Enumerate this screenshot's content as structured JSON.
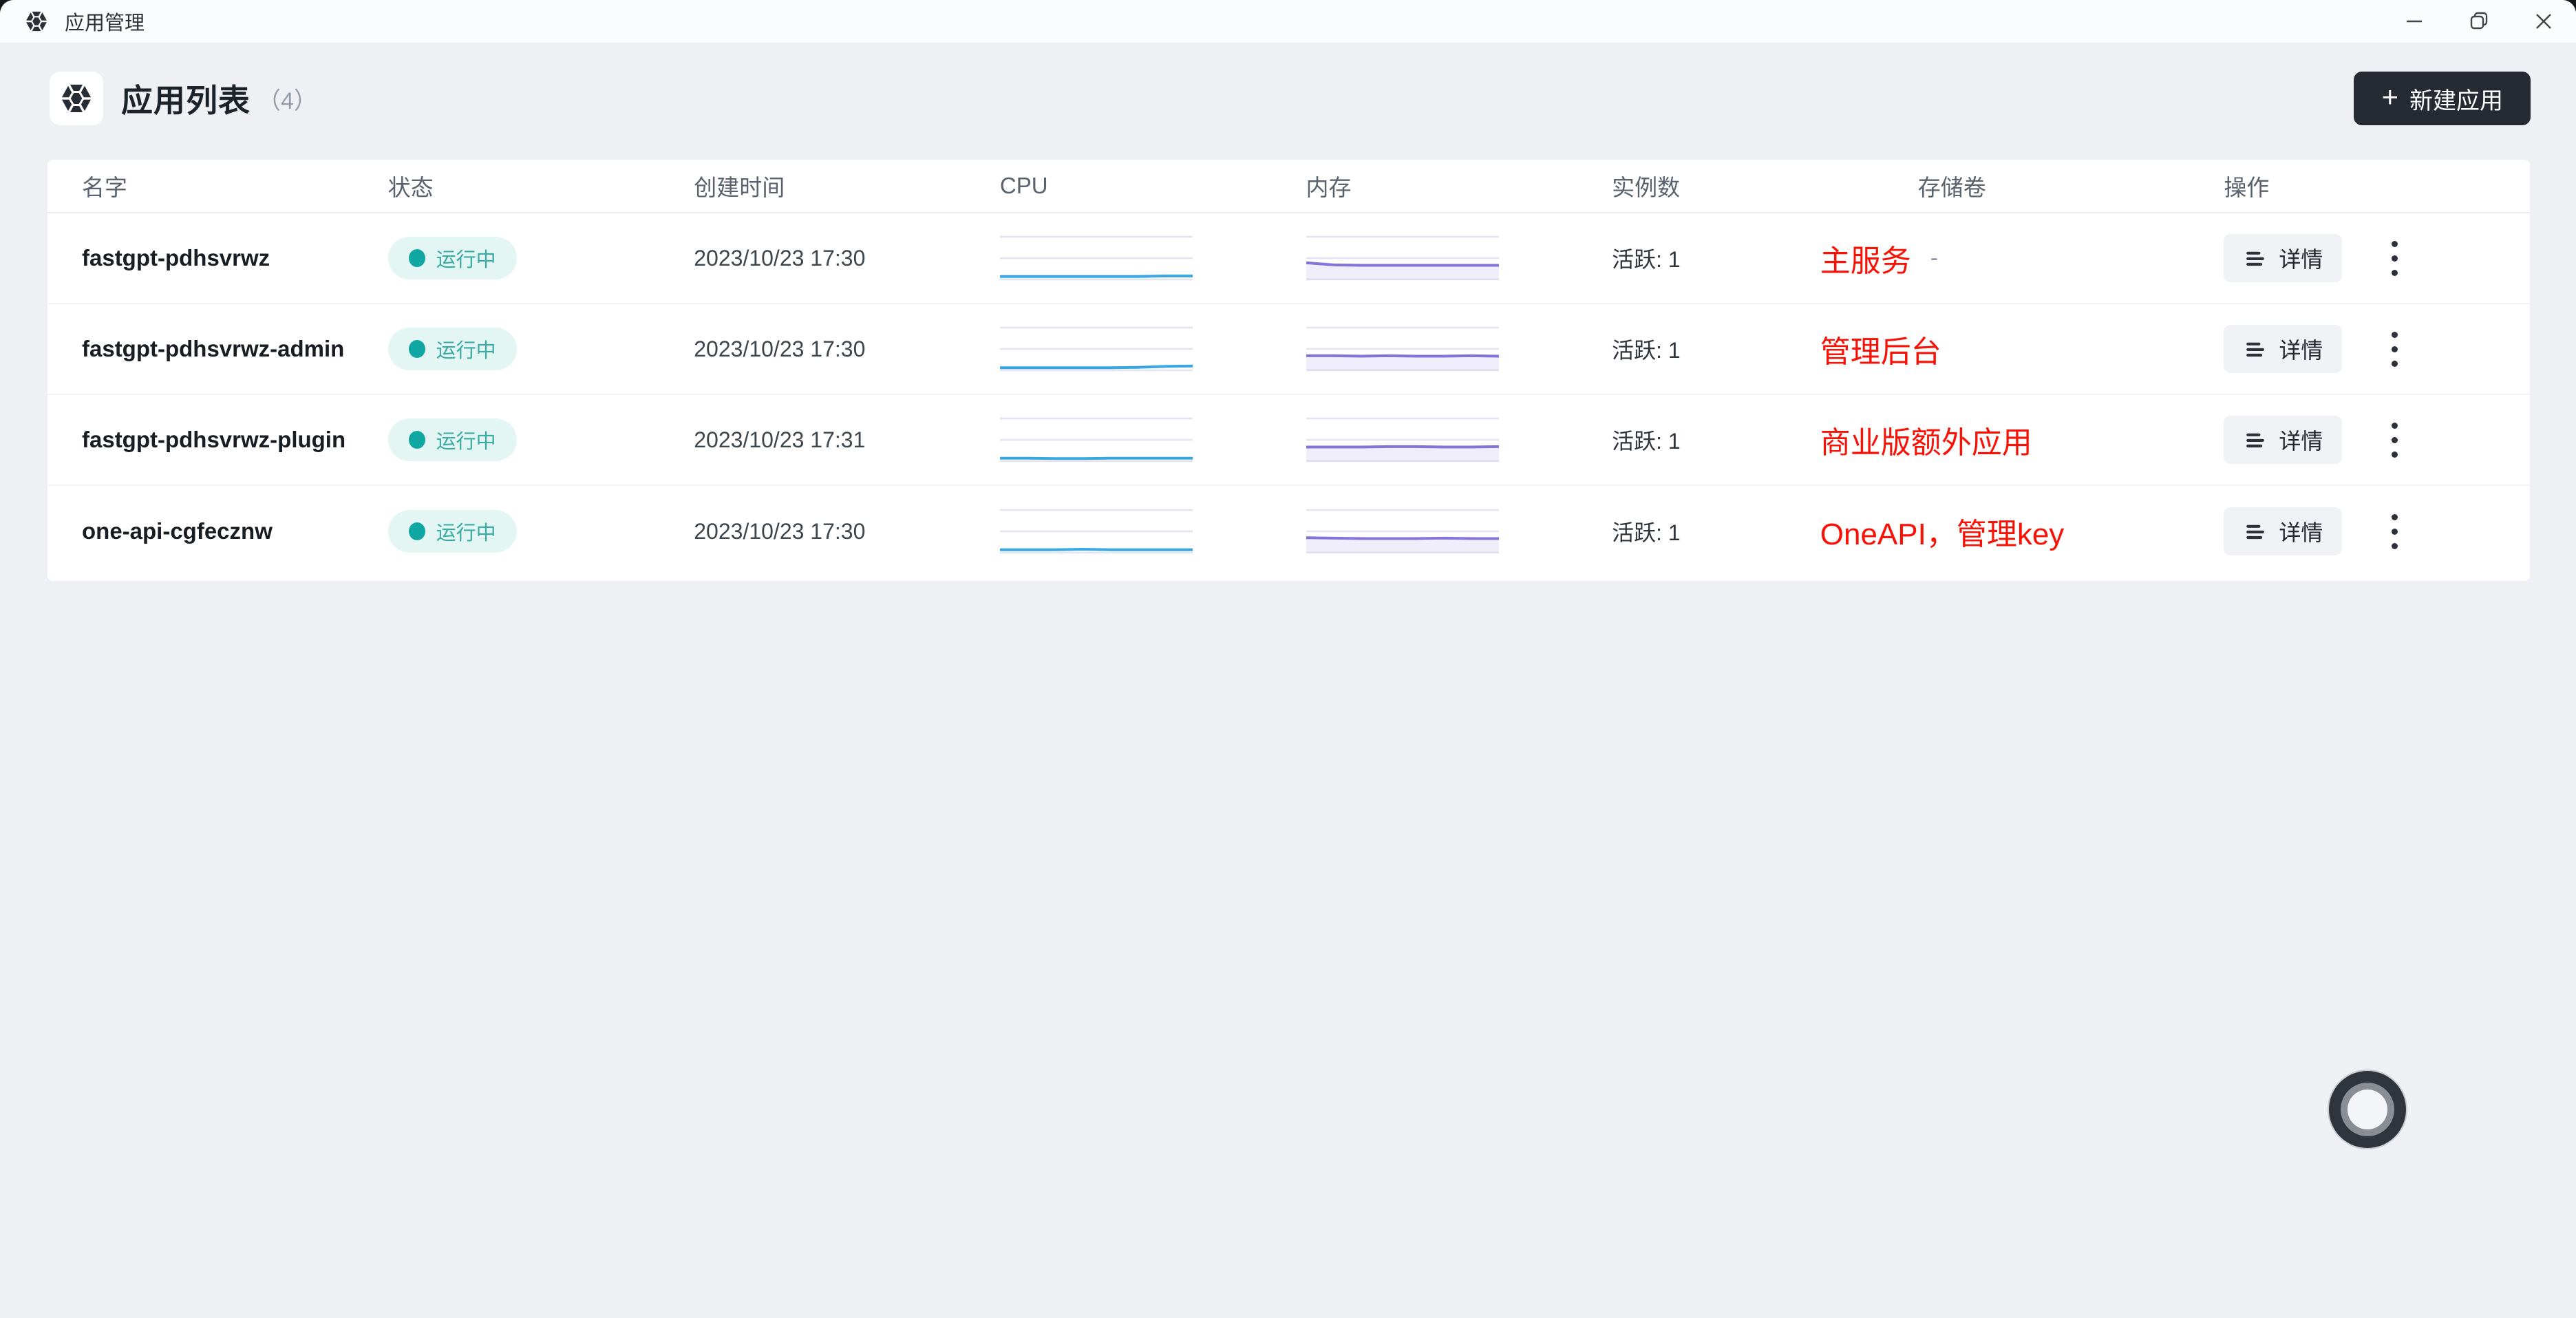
{
  "titlebar": {
    "app_title": "应用管理",
    "icons": {
      "app": "gem-hexagon",
      "minimize": "minimize",
      "restore": "restore-window",
      "close": "close"
    }
  },
  "header": {
    "title": "应用列表",
    "count": "（4）",
    "new_button": {
      "plus": "+",
      "label": "新建应用"
    }
  },
  "table": {
    "columns": [
      "名字",
      "状态",
      "创建时间",
      "CPU",
      "内存",
      "实例数",
      "存储卷",
      "操作"
    ],
    "detail_label": "详情",
    "rows": [
      {
        "name": "fastgpt-pdhsvrwz",
        "status": "运行中",
        "created": "2023/10/23 17:30",
        "instances": "活跃: 1",
        "volume": "-",
        "annotation": "主服务",
        "cpu": [
          0.07,
          0.07,
          0.07,
          0.07,
          0.07,
          0.07,
          0.08,
          0.08
        ],
        "mem": [
          0.39,
          0.34,
          0.33,
          0.33,
          0.33,
          0.33,
          0.33,
          0.33
        ]
      },
      {
        "name": "fastgpt-pdhsvrwz-admin",
        "status": "运行中",
        "created": "2023/10/23 17:30",
        "instances": "活跃: 1",
        "volume": "",
        "annotation": "管理后台",
        "cpu": [
          0.06,
          0.06,
          0.06,
          0.06,
          0.06,
          0.07,
          0.09,
          0.1
        ],
        "mem": [
          0.34,
          0.34,
          0.33,
          0.34,
          0.33,
          0.33,
          0.34,
          0.33
        ]
      },
      {
        "name": "fastgpt-pdhsvrwz-plugin",
        "status": "运行中",
        "created": "2023/10/23 17:31",
        "instances": "活跃: 1",
        "volume": "",
        "annotation": "商业版额外应用",
        "cpu": [
          0.07,
          0.07,
          0.06,
          0.06,
          0.07,
          0.07,
          0.07,
          0.07
        ],
        "mem": [
          0.33,
          0.33,
          0.33,
          0.34,
          0.34,
          0.33,
          0.33,
          0.34
        ]
      },
      {
        "name": "one-api-cgfecznw",
        "status": "运行中",
        "created": "2023/10/23 17:30",
        "instances": "活跃: 1",
        "volume": "",
        "annotation": "OneAPI，管理key",
        "cpu": [
          0.07,
          0.07,
          0.07,
          0.08,
          0.07,
          0.07,
          0.07,
          0.07
        ],
        "mem": [
          0.35,
          0.34,
          0.33,
          0.33,
          0.33,
          0.34,
          0.33,
          0.33
        ]
      }
    ]
  },
  "colors": {
    "primary_button_bg": "#262b33",
    "badge_bg": "#e3f6f3",
    "badge_dot": "#10a7a2",
    "badge_text": "#3baaa2",
    "cpu_line": "#3aa7e2",
    "mem_line": "#8573da",
    "mem_fill": "rgba(133,115,218,0.12)",
    "grid_line": "#e2e5f1",
    "annotation_red": "#f81206"
  }
}
